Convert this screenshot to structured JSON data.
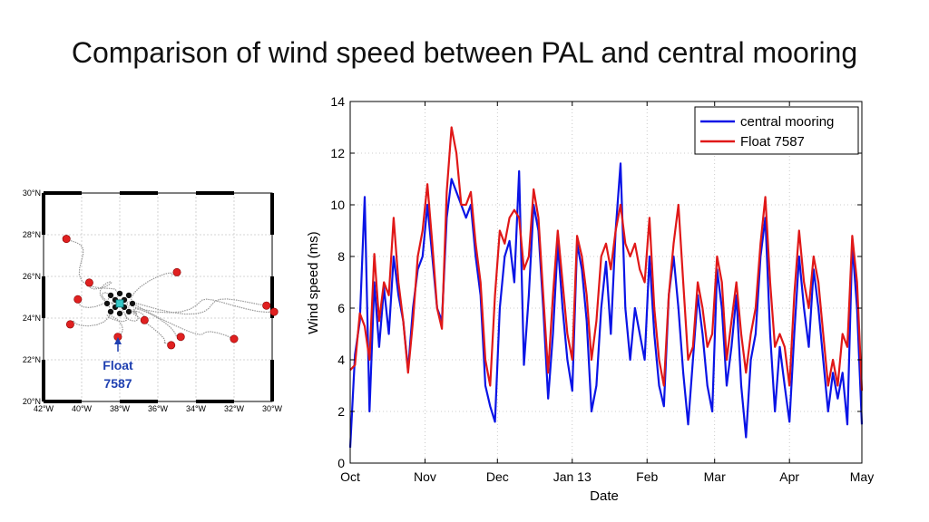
{
  "slide": {
    "title": "Comparison of wind speed between PAL and central mooring"
  },
  "map": {
    "lat_ticks": [
      "30°N",
      "28°N",
      "26°N",
      "24°N",
      "22°N",
      "20°N"
    ],
    "lon_ticks": [
      "42°W",
      "40°W",
      "38°W",
      "36°W",
      "34°W",
      "32°W",
      "30°W"
    ],
    "float_label_line1": "Float",
    "float_label_line2": "7587",
    "float_label_color": "#1e3fb0",
    "float_end_positions": [
      [
        -40.8,
        27.8
      ],
      [
        -35.0,
        26.2
      ],
      [
        -39.6,
        25.7
      ],
      [
        -40.2,
        24.9
      ],
      [
        -40.6,
        23.7
      ],
      [
        -36.7,
        23.9
      ],
      [
        -38.1,
        23.1
      ],
      [
        -34.8,
        23.1
      ],
      [
        -35.3,
        22.7
      ],
      [
        -32.0,
        23.0
      ],
      [
        -30.3,
        24.6
      ],
      [
        -29.9,
        24.3
      ]
    ],
    "mooring_center": [
      -38.0,
      24.7
    ],
    "marker_color": "#e02020",
    "mooring_color": "#36c8c8"
  },
  "chart_data": {
    "type": "line",
    "title": "",
    "xlabel": "Date",
    "ylabel": "Wind speed (ms)",
    "xlim": [
      "2012-10-01",
      "2013-05-01"
    ],
    "ylim": [
      0,
      14
    ],
    "yticks": [
      0,
      2,
      4,
      6,
      8,
      10,
      12,
      14
    ],
    "xticks": [
      {
        "date": "2012-10-01",
        "label": "Oct"
      },
      {
        "date": "2012-11-01",
        "label": "Nov"
      },
      {
        "date": "2012-12-01",
        "label": "Dec"
      },
      {
        "date": "2013-01-01",
        "label": "Jan 13"
      },
      {
        "date": "2013-02-01",
        "label": "Feb"
      },
      {
        "date": "2013-03-01",
        "label": "Mar"
      },
      {
        "date": "2013-04-01",
        "label": "Apr"
      },
      {
        "date": "2013-05-01",
        "label": "May"
      }
    ],
    "grid": true,
    "legend_position": "top-right",
    "series": [
      {
        "name": "central mooring",
        "color": "#0a14e6",
        "points": [
          [
            "2012-10-01",
            0.6
          ],
          [
            "2012-10-03",
            4.2
          ],
          [
            "2012-10-05",
            5.5
          ],
          [
            "2012-10-07",
            10.3
          ],
          [
            "2012-10-09",
            2.0
          ],
          [
            "2012-10-11",
            7.0
          ],
          [
            "2012-10-13",
            4.5
          ],
          [
            "2012-10-15",
            6.8
          ],
          [
            "2012-10-17",
            5.0
          ],
          [
            "2012-10-19",
            8.0
          ],
          [
            "2012-10-21",
            6.5
          ],
          [
            "2012-10-23",
            5.5
          ],
          [
            "2012-10-25",
            3.6
          ],
          [
            "2012-10-27",
            6.0
          ],
          [
            "2012-10-29",
            7.5
          ],
          [
            "2012-10-31",
            8.0
          ],
          [
            "2012-11-02",
            10.0
          ],
          [
            "2012-11-04",
            8.0
          ],
          [
            "2012-11-06",
            6.0
          ],
          [
            "2012-11-08",
            5.5
          ],
          [
            "2012-11-10",
            9.5
          ],
          [
            "2012-11-12",
            11.0
          ],
          [
            "2012-11-14",
            10.5
          ],
          [
            "2012-11-16",
            10.0
          ],
          [
            "2012-11-18",
            9.5
          ],
          [
            "2012-11-20",
            10.0
          ],
          [
            "2012-11-22",
            8.0
          ],
          [
            "2012-11-24",
            6.5
          ],
          [
            "2012-11-26",
            3.0
          ],
          [
            "2012-11-28",
            2.2
          ],
          [
            "2012-11-30",
            1.6
          ],
          [
            "2012-12-02",
            6.0
          ],
          [
            "2012-12-04",
            8.0
          ],
          [
            "2012-12-06",
            8.6
          ],
          [
            "2012-12-08",
            7.0
          ],
          [
            "2012-12-10",
            11.3
          ],
          [
            "2012-12-12",
            3.8
          ],
          [
            "2012-12-14",
            6.5
          ],
          [
            "2012-12-16",
            10.0
          ],
          [
            "2012-12-18",
            9.0
          ],
          [
            "2012-12-20",
            6.0
          ],
          [
            "2012-12-22",
            2.5
          ],
          [
            "2012-12-24",
            5.0
          ],
          [
            "2012-12-26",
            8.5
          ],
          [
            "2012-12-28",
            6.0
          ],
          [
            "2012-12-30",
            4.0
          ],
          [
            "2013-01-01",
            2.8
          ],
          [
            "2013-01-03",
            8.5
          ],
          [
            "2013-01-05",
            7.5
          ],
          [
            "2013-01-07",
            5.5
          ],
          [
            "2013-01-09",
            2.0
          ],
          [
            "2013-01-11",
            3.0
          ],
          [
            "2013-01-13",
            6.0
          ],
          [
            "2013-01-15",
            7.8
          ],
          [
            "2013-01-17",
            5.0
          ],
          [
            "2013-01-19",
            9.0
          ],
          [
            "2013-01-21",
            11.6
          ],
          [
            "2013-01-23",
            6.0
          ],
          [
            "2013-01-25",
            4.0
          ],
          [
            "2013-01-27",
            6.0
          ],
          [
            "2013-01-29",
            5.0
          ],
          [
            "2013-01-31",
            4.0
          ],
          [
            "2013-02-02",
            8.0
          ],
          [
            "2013-02-04",
            5.0
          ],
          [
            "2013-02-06",
            3.0
          ],
          [
            "2013-02-08",
            2.2
          ],
          [
            "2013-02-10",
            6.5
          ],
          [
            "2013-02-12",
            8.0
          ],
          [
            "2013-02-14",
            6.0
          ],
          [
            "2013-02-16",
            3.5
          ],
          [
            "2013-02-18",
            1.5
          ],
          [
            "2013-02-20",
            4.0
          ],
          [
            "2013-02-22",
            6.5
          ],
          [
            "2013-02-24",
            5.0
          ],
          [
            "2013-02-26",
            3.0
          ],
          [
            "2013-02-28",
            2.0
          ],
          [
            "2013-03-02",
            7.5
          ],
          [
            "2013-03-04",
            6.0
          ],
          [
            "2013-03-06",
            3.0
          ],
          [
            "2013-03-08",
            4.5
          ],
          [
            "2013-03-10",
            6.5
          ],
          [
            "2013-03-12",
            3.0
          ],
          [
            "2013-03-14",
            1.0
          ],
          [
            "2013-03-16",
            4.0
          ],
          [
            "2013-03-18",
            5.0
          ],
          [
            "2013-03-20",
            8.0
          ],
          [
            "2013-03-22",
            9.5
          ],
          [
            "2013-03-24",
            5.0
          ],
          [
            "2013-03-26",
            2.0
          ],
          [
            "2013-03-28",
            4.5
          ],
          [
            "2013-03-30",
            3.0
          ],
          [
            "2013-04-01",
            1.6
          ],
          [
            "2013-04-03",
            5.0
          ],
          [
            "2013-04-05",
            8.0
          ],
          [
            "2013-04-07",
            6.0
          ],
          [
            "2013-04-09",
            4.5
          ],
          [
            "2013-04-11",
            7.5
          ],
          [
            "2013-04-13",
            6.0
          ],
          [
            "2013-04-15",
            4.0
          ],
          [
            "2013-04-17",
            2.0
          ],
          [
            "2013-04-19",
            3.5
          ],
          [
            "2013-04-21",
            2.5
          ],
          [
            "2013-04-23",
            3.5
          ],
          [
            "2013-04-25",
            1.5
          ],
          [
            "2013-04-27",
            8.5
          ],
          [
            "2013-04-29",
            6.0
          ],
          [
            "2013-05-01",
            1.5
          ]
        ]
      },
      {
        "name": "Float 7587",
        "color": "#e01818",
        "points": [
          [
            "2012-10-01",
            3.6
          ],
          [
            "2012-10-03",
            3.8
          ],
          [
            "2012-10-05",
            5.8
          ],
          [
            "2012-10-07",
            5.3
          ],
          [
            "2012-10-09",
            4.0
          ],
          [
            "2012-10-11",
            8.1
          ],
          [
            "2012-10-13",
            5.5
          ],
          [
            "2012-10-15",
            7.0
          ],
          [
            "2012-10-17",
            6.5
          ],
          [
            "2012-10-19",
            9.5
          ],
          [
            "2012-10-21",
            7.0
          ],
          [
            "2012-10-23",
            5.5
          ],
          [
            "2012-10-25",
            3.5
          ],
          [
            "2012-10-27",
            5.5
          ],
          [
            "2012-10-29",
            8.0
          ],
          [
            "2012-10-31",
            9.0
          ],
          [
            "2012-11-02",
            10.8
          ],
          [
            "2012-11-04",
            8.5
          ],
          [
            "2012-11-06",
            6.0
          ],
          [
            "2012-11-08",
            5.2
          ],
          [
            "2012-11-10",
            10.5
          ],
          [
            "2012-11-12",
            13.0
          ],
          [
            "2012-11-14",
            12.0
          ],
          [
            "2012-11-16",
            10.0
          ],
          [
            "2012-11-18",
            10.0
          ],
          [
            "2012-11-20",
            10.5
          ],
          [
            "2012-11-22",
            8.5
          ],
          [
            "2012-11-24",
            7.0
          ],
          [
            "2012-11-26",
            4.0
          ],
          [
            "2012-11-28",
            3.0
          ],
          [
            "2012-11-30",
            6.5
          ],
          [
            "2012-12-02",
            9.0
          ],
          [
            "2012-12-04",
            8.5
          ],
          [
            "2012-12-06",
            9.5
          ],
          [
            "2012-12-08",
            9.8
          ],
          [
            "2012-12-10",
            9.5
          ],
          [
            "2012-12-12",
            7.5
          ],
          [
            "2012-12-14",
            8.0
          ],
          [
            "2012-12-16",
            10.6
          ],
          [
            "2012-12-18",
            9.5
          ],
          [
            "2012-12-20",
            6.5
          ],
          [
            "2012-12-22",
            3.5
          ],
          [
            "2012-12-24",
            6.5
          ],
          [
            "2012-12-26",
            9.0
          ],
          [
            "2012-12-28",
            7.0
          ],
          [
            "2012-12-30",
            5.0
          ],
          [
            "2013-01-01",
            4.0
          ],
          [
            "2013-01-03",
            8.8
          ],
          [
            "2013-01-05",
            8.0
          ],
          [
            "2013-01-07",
            6.5
          ],
          [
            "2013-01-09",
            4.0
          ],
          [
            "2013-01-11",
            5.5
          ],
          [
            "2013-01-13",
            8.0
          ],
          [
            "2013-01-15",
            8.5
          ],
          [
            "2013-01-17",
            7.5
          ],
          [
            "2013-01-19",
            9.0
          ],
          [
            "2013-01-21",
            10.0
          ],
          [
            "2013-01-23",
            8.5
          ],
          [
            "2013-01-25",
            8.0
          ],
          [
            "2013-01-27",
            8.5
          ],
          [
            "2013-01-29",
            7.5
          ],
          [
            "2013-01-31",
            7.0
          ],
          [
            "2013-02-02",
            9.5
          ],
          [
            "2013-02-04",
            6.0
          ],
          [
            "2013-02-06",
            4.0
          ],
          [
            "2013-02-08",
            3.0
          ],
          [
            "2013-02-10",
            6.5
          ],
          [
            "2013-02-12",
            8.5
          ],
          [
            "2013-02-14",
            10.0
          ],
          [
            "2013-02-16",
            7.0
          ],
          [
            "2013-02-18",
            4.0
          ],
          [
            "2013-02-20",
            4.5
          ],
          [
            "2013-02-22",
            7.0
          ],
          [
            "2013-02-24",
            6.0
          ],
          [
            "2013-02-26",
            4.5
          ],
          [
            "2013-02-28",
            5.0
          ],
          [
            "2013-03-02",
            8.0
          ],
          [
            "2013-03-04",
            7.0
          ],
          [
            "2013-03-06",
            4.0
          ],
          [
            "2013-03-08",
            5.5
          ],
          [
            "2013-03-10",
            7.0
          ],
          [
            "2013-03-12",
            5.0
          ],
          [
            "2013-03-14",
            3.5
          ],
          [
            "2013-03-16",
            5.0
          ],
          [
            "2013-03-18",
            6.0
          ],
          [
            "2013-03-20",
            8.5
          ],
          [
            "2013-03-22",
            10.3
          ],
          [
            "2013-03-24",
            7.0
          ],
          [
            "2013-03-26",
            4.5
          ],
          [
            "2013-03-28",
            5.0
          ],
          [
            "2013-03-30",
            4.5
          ],
          [
            "2013-04-01",
            3.0
          ],
          [
            "2013-04-03",
            6.5
          ],
          [
            "2013-04-05",
            9.0
          ],
          [
            "2013-04-07",
            7.0
          ],
          [
            "2013-04-09",
            6.0
          ],
          [
            "2013-04-11",
            8.0
          ],
          [
            "2013-04-13",
            7.0
          ],
          [
            "2013-04-15",
            5.0
          ],
          [
            "2013-04-17",
            3.0
          ],
          [
            "2013-04-19",
            4.0
          ],
          [
            "2013-04-21",
            3.0
          ],
          [
            "2013-04-23",
            5.0
          ],
          [
            "2013-04-25",
            4.5
          ],
          [
            "2013-04-27",
            8.8
          ],
          [
            "2013-04-29",
            7.0
          ],
          [
            "2013-05-01",
            2.8
          ]
        ]
      }
    ]
  }
}
